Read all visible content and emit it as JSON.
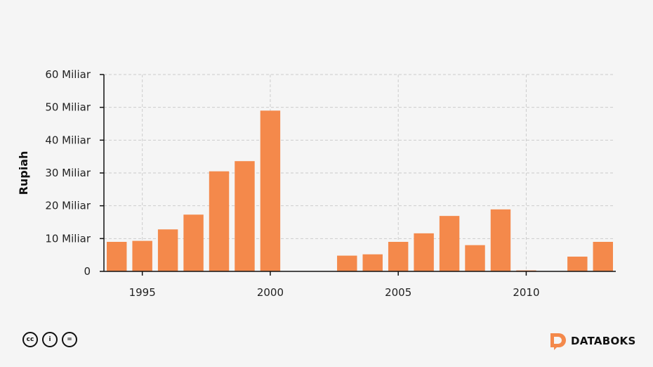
{
  "chart_data": {
    "type": "bar",
    "ylabel": "Rupiah",
    "ylim": [
      0,
      60
    ],
    "y_ticks": [
      {
        "value": 0,
        "label": "0"
      },
      {
        "value": 10,
        "label": "10 Miliar"
      },
      {
        "value": 20,
        "label": "20 Miliar"
      },
      {
        "value": 30,
        "label": "30 Miliar"
      },
      {
        "value": 40,
        "label": "40 Miliar"
      },
      {
        "value": 50,
        "label": "50 Miliar"
      },
      {
        "value": 60,
        "label": "60 Miliar"
      }
    ],
    "x_ticks": [
      1995,
      2000,
      2005,
      2010
    ],
    "x_tick_labels": [
      "1995",
      "2000",
      "2005",
      "2010"
    ],
    "x": [
      1994,
      1995,
      1996,
      1997,
      1998,
      1999,
      2000,
      2001,
      2002,
      2003,
      2004,
      2005,
      2006,
      2007,
      2008,
      2009,
      2010,
      2011,
      2012,
      2013
    ],
    "values": [
      9.0,
      9.3,
      12.8,
      17.3,
      30.5,
      33.6,
      49.0,
      0,
      0,
      4.8,
      5.2,
      9.0,
      11.6,
      16.9,
      8.0,
      18.9,
      0.3,
      0,
      4.5,
      9.0
    ],
    "grid": true,
    "bar_color": "#f4894b"
  },
  "footer": {
    "license_icons": [
      "cc-icon",
      "by-icon",
      "nd-icon"
    ],
    "license_glyphs": [
      "cc",
      "i",
      "="
    ],
    "brand": "DATABOKS",
    "brand_color": "#f4894b"
  }
}
